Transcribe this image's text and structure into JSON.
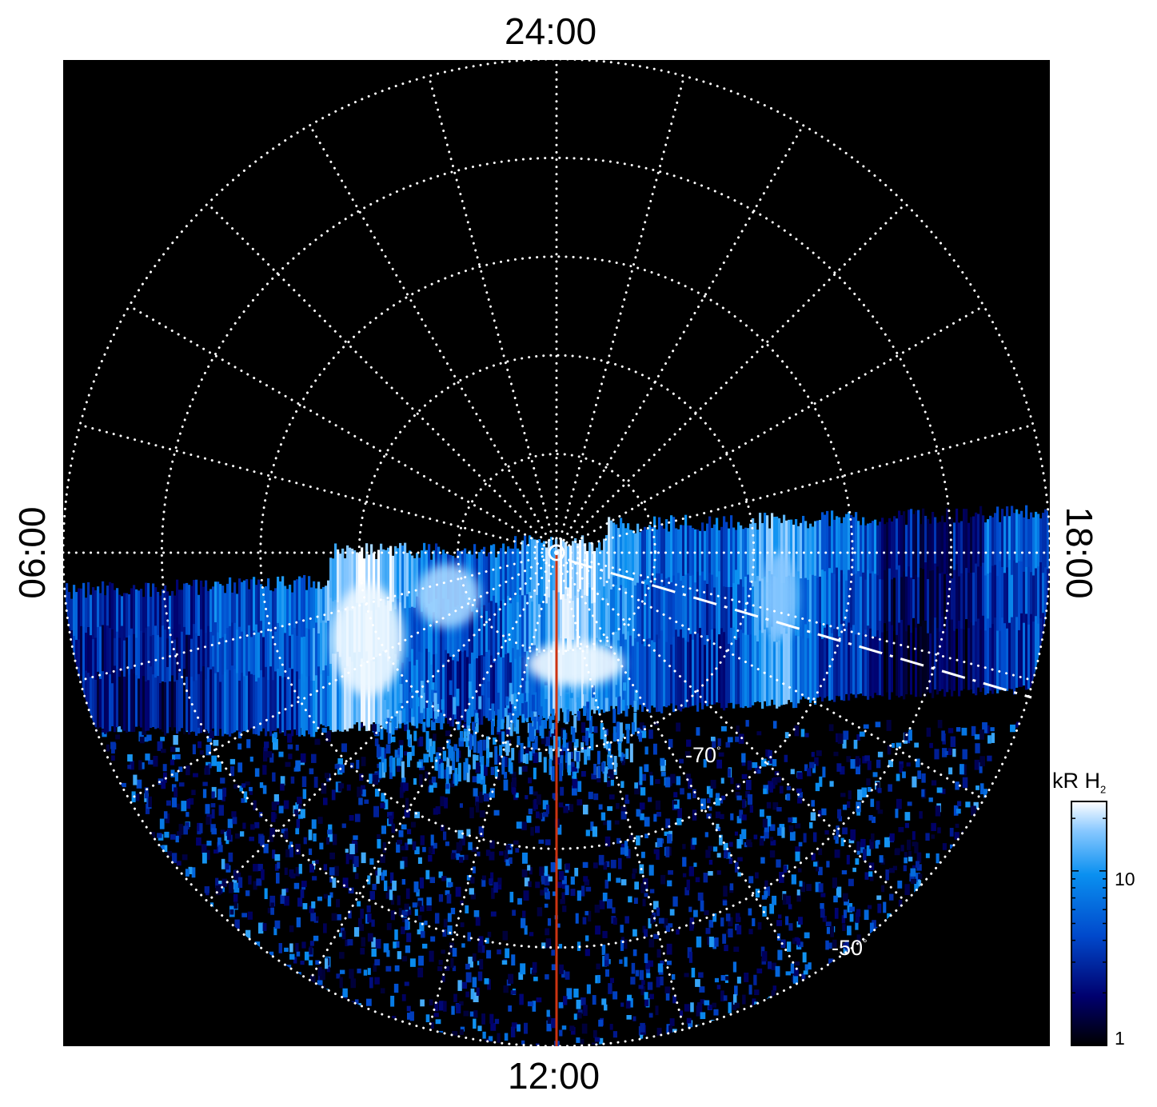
{
  "chart_data": {
    "type": "heatmap",
    "projection": "polar",
    "local_time_labels": {
      "top": "24:00",
      "bottom": "12:00",
      "left": "06:00",
      "right": "18:00"
    },
    "latitude_labels": [
      {
        "value": "-70",
        "unit": "°"
      },
      {
        "value": "-50",
        "unit": "°"
      }
    ],
    "latitude_circles_deg": [
      -80,
      -70,
      -60,
      -50,
      -40
    ],
    "meridian_step_hours": 1,
    "colorbar": {
      "title": "kR H",
      "title_subscript": "2",
      "scale": "log",
      "range": [
        1,
        25
      ],
      "tick_labels": [
        "1",
        "10"
      ],
      "colors": [
        "#000000",
        "#00006e",
        "#0049cc",
        "#0a90f0",
        "#88c8ff",
        "#ffffff"
      ]
    },
    "meridian_line_color": "#cc3311",
    "grid_color": "#ffffff",
    "background_color": "#000000"
  }
}
